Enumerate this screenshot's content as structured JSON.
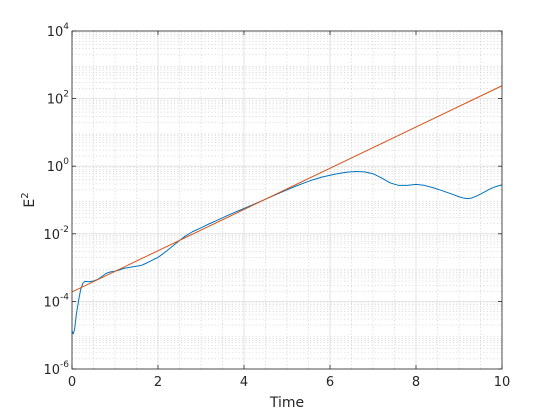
{
  "chart_data": {
    "type": "line",
    "title": "",
    "xlabel": "Time",
    "ylabel": "E",
    "ylabel_superscript": "2",
    "xlim": [
      0,
      10
    ],
    "ylim": [
      1e-06,
      10000.0
    ],
    "yscale": "log",
    "grid": true,
    "minor_grid": true,
    "x_ticks": [
      {
        "value": 0,
        "label": "0"
      },
      {
        "value": 2,
        "label": "2"
      },
      {
        "value": 4,
        "label": "4"
      },
      {
        "value": 6,
        "label": "6"
      },
      {
        "value": 8,
        "label": "8"
      },
      {
        "value": 10,
        "label": "10"
      }
    ],
    "y_ticks": [
      {
        "value": 1e-06,
        "base": "10",
        "exp": "-6"
      },
      {
        "value": 0.0001,
        "base": "10",
        "exp": "-4"
      },
      {
        "value": 0.01,
        "base": "10",
        "exp": "-2"
      },
      {
        "value": 1,
        "base": "10",
        "exp": "0"
      },
      {
        "value": 100,
        "base": "10",
        "exp": "2"
      },
      {
        "value": 10000,
        "base": "10",
        "exp": "4"
      }
    ],
    "series": [
      {
        "color": "#0072BD",
        "x": [
          0.0,
          0.03,
          0.06,
          0.1,
          0.15,
          0.2,
          0.25,
          0.3,
          0.4,
          0.5,
          0.6,
          0.7,
          0.8,
          0.9,
          1.0,
          1.1,
          1.2,
          1.3,
          1.4,
          1.5,
          1.6,
          1.7,
          1.8,
          1.9,
          2.0,
          2.2,
          2.4,
          2.6,
          2.8,
          3.0,
          3.2,
          3.4,
          3.6,
          3.8,
          4.0,
          4.2,
          4.4,
          4.6,
          4.8,
          5.0,
          5.2,
          5.4,
          5.6,
          5.8,
          6.0,
          6.2,
          6.4,
          6.6,
          6.8,
          7.0,
          7.2,
          7.4,
          7.6,
          7.8,
          8.0,
          8.2,
          8.4,
          8.6,
          8.8,
          9.0,
          9.1,
          9.2,
          9.3,
          9.4,
          9.5,
          9.6,
          9.7,
          9.8,
          9.9,
          10.0
        ],
        "y": [
          1.3e-05,
          1.1e-05,
          1.5e-05,
          4e-05,
          0.0001,
          0.00022,
          0.00034,
          0.00039,
          0.00038,
          0.0004,
          0.00045,
          0.00055,
          0.00068,
          0.00075,
          0.00078,
          0.00085,
          0.00095,
          0.001,
          0.00105,
          0.0011,
          0.00115,
          0.0013,
          0.0015,
          0.00175,
          0.002,
          0.0031,
          0.005,
          0.008,
          0.0115,
          0.015,
          0.02,
          0.026,
          0.034,
          0.044,
          0.056,
          0.072,
          0.093,
          0.12,
          0.155,
          0.2,
          0.255,
          0.32,
          0.395,
          0.47,
          0.54,
          0.61,
          0.67,
          0.7,
          0.68,
          0.6,
          0.45,
          0.32,
          0.27,
          0.27,
          0.29,
          0.27,
          0.23,
          0.19,
          0.155,
          0.125,
          0.115,
          0.11,
          0.115,
          0.13,
          0.15,
          0.175,
          0.205,
          0.235,
          0.26,
          0.28
        ]
      },
      {
        "color": "#D95319",
        "x": [
          0,
          10
        ],
        "y": [
          0.00019,
          240
        ]
      }
    ]
  }
}
